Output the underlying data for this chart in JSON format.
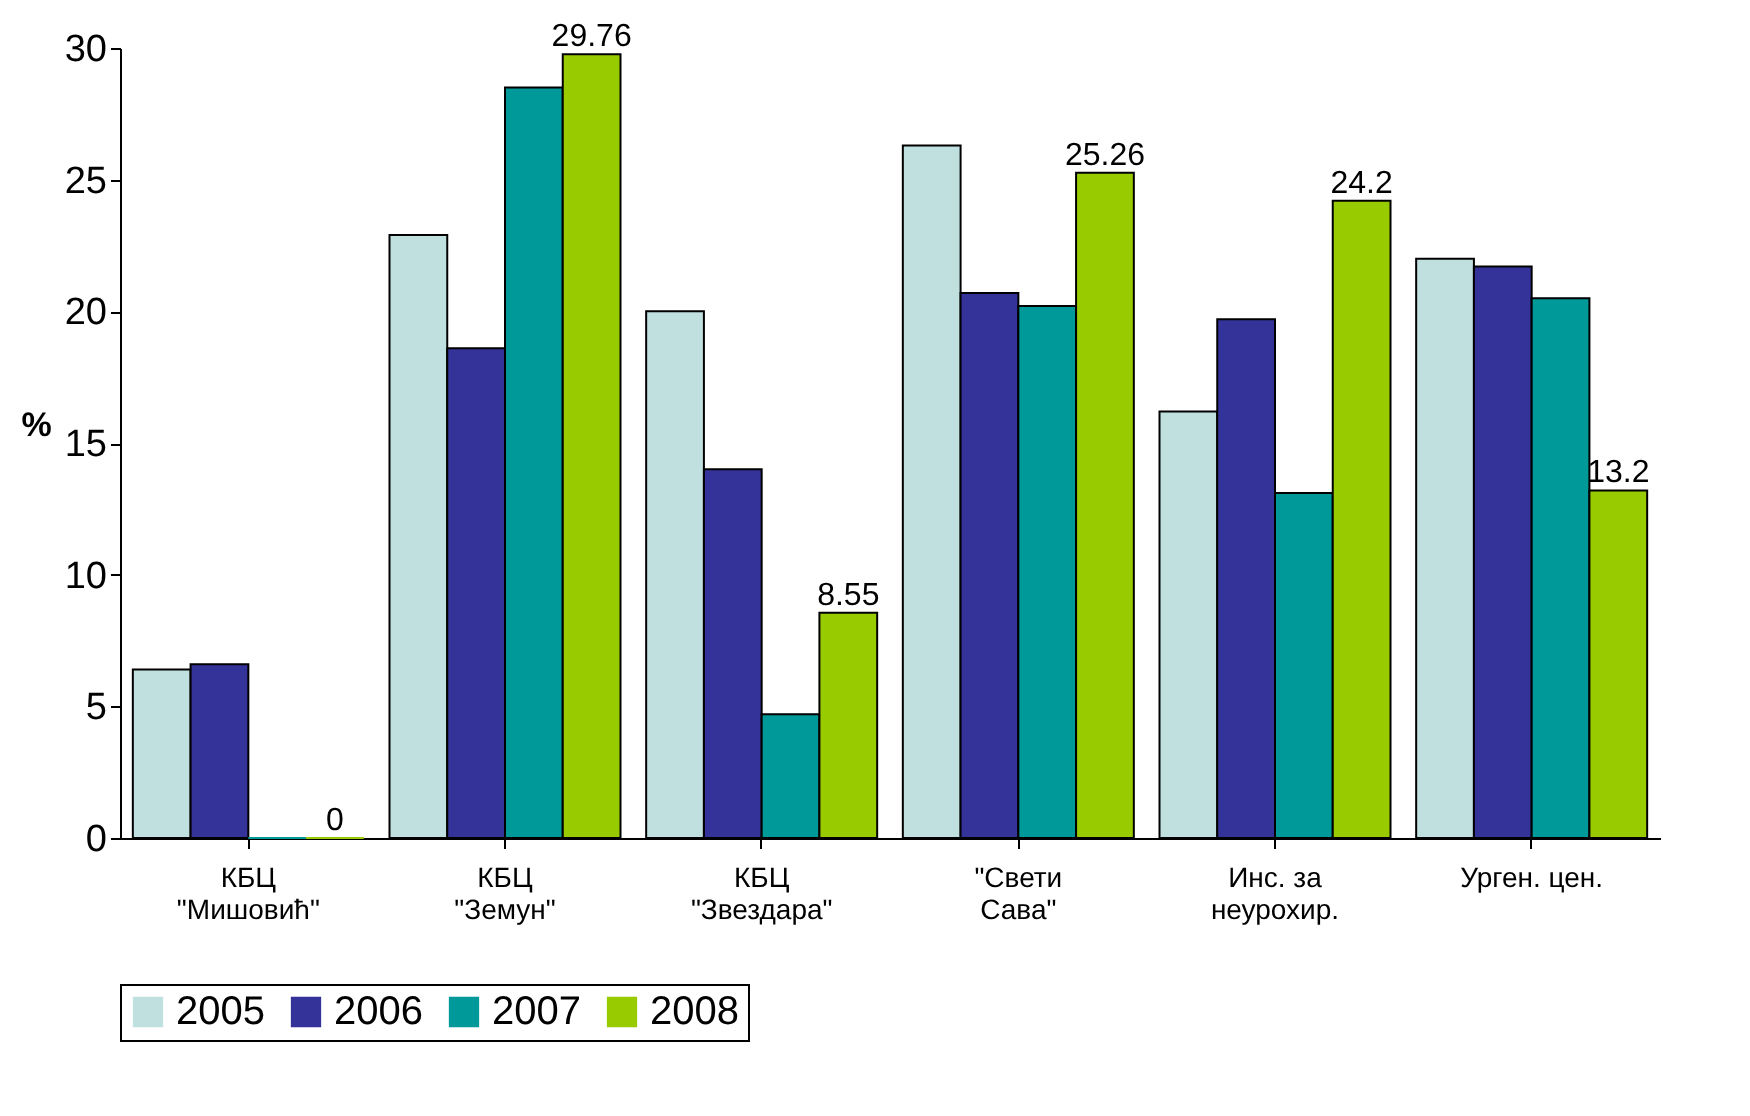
{
  "chart_data": {
    "type": "bar",
    "ylabel": "%",
    "categories": [
      "КБЦ\n\"Мишовић\"",
      "КБЦ\n\"Земун\"",
      "КБЦ\n\"Звездара\"",
      "\"Свети\nСава\"",
      "Инс. за\nнеурохир.",
      "Урген. цен."
    ],
    "series": [
      {
        "name": "2005",
        "color": "#c0e0e0",
        "values": [
          6.4,
          22.9,
          20.0,
          26.3,
          16.2,
          22.0
        ]
      },
      {
        "name": "2006",
        "color": "#333399",
        "values": [
          6.6,
          18.6,
          14.0,
          20.7,
          19.7,
          21.7
        ]
      },
      {
        "name": "2007",
        "color": "#009999",
        "values": [
          0,
          28.5,
          4.7,
          20.2,
          13.1,
          20.5
        ]
      },
      {
        "name": "2008",
        "color": "#99cc00",
        "values": [
          0,
          29.76,
          8.55,
          25.26,
          24.2,
          13.2
        ],
        "value_labels": [
          "0",
          "29.76",
          "8.55",
          "25.26",
          "24.2",
          "13.2"
        ]
      }
    ],
    "ylim": [
      0,
      30
    ],
    "yticks": [
      0,
      5,
      10,
      15,
      20,
      25,
      30
    ],
    "grid": false,
    "legend": "bottom"
  }
}
